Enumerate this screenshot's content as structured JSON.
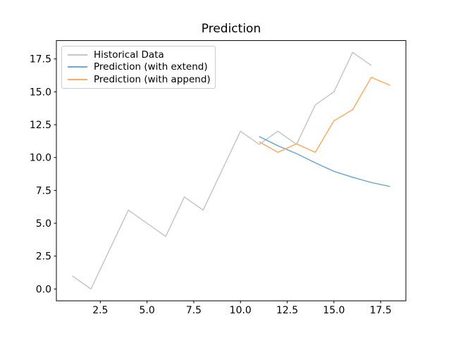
{
  "window": {
    "background": "#ffffff"
  },
  "chart_data": {
    "type": "line",
    "title": "Prediction",
    "xlabel": "",
    "ylabel": "",
    "xlim": [
      0.15,
      18.85
    ],
    "ylim": [
      -0.9,
      18.9
    ],
    "grid": false,
    "legend_position": "upper left",
    "axis_color": "#000000",
    "x_ticks": [
      2.5,
      5.0,
      7.5,
      10.0,
      12.5,
      15.0,
      17.5
    ],
    "x_tick_labels": [
      "2.5",
      "5.0",
      "7.5",
      "10.0",
      "12.5",
      "15.0",
      "17.5"
    ],
    "y_ticks": [
      0.0,
      2.5,
      5.0,
      7.5,
      10.0,
      12.5,
      15.0,
      17.5
    ],
    "y_tick_labels": [
      "0.0",
      "2.5",
      "5.0",
      "7.5",
      "10.0",
      "12.5",
      "15.0",
      "17.5"
    ],
    "series": [
      {
        "name": "Historical Data",
        "color": "#c6c6c6",
        "x": [
          1,
          2,
          3,
          4,
          5,
          6,
          7,
          8,
          9,
          10,
          11,
          12,
          13,
          14,
          15,
          16,
          17
        ],
        "y": [
          1,
          0,
          3,
          6,
          5,
          4,
          7,
          6,
          9,
          12,
          11,
          12,
          11,
          14,
          15,
          18,
          17
        ]
      },
      {
        "name": "Prediction (with extend)",
        "color": "#6fa8d0",
        "x": [
          11,
          12,
          13,
          14,
          15,
          16,
          17,
          18
        ],
        "y": [
          11.6,
          10.9,
          10.3,
          9.6,
          8.95,
          8.5,
          8.1,
          7.8
        ]
      },
      {
        "name": "Prediction (with append)",
        "color": "#ffac60",
        "x": [
          11,
          12,
          13,
          14,
          15,
          16,
          17,
          18
        ],
        "y": [
          11.2,
          10.4,
          11.05,
          10.4,
          12.8,
          13.65,
          16.1,
          15.5
        ]
      }
    ]
  }
}
